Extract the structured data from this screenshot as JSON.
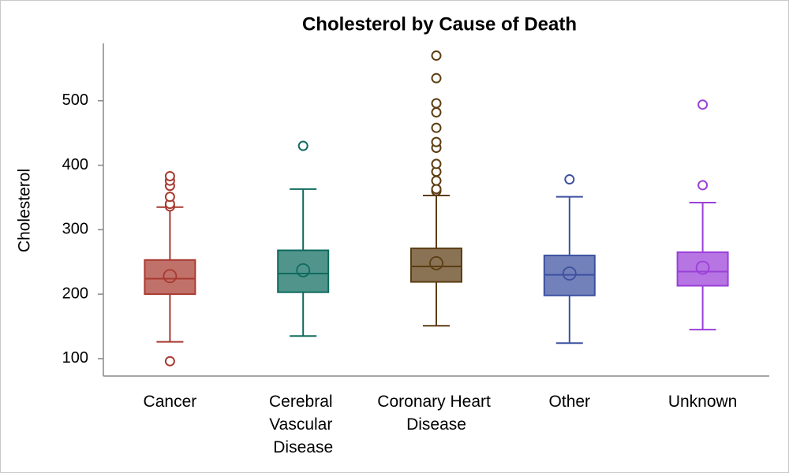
{
  "chart_data": {
    "type": "box",
    "title": "Cholesterol by Cause of Death",
    "y_label": "Cholesterol",
    "categories": [
      "Cancer",
      "Cerebral Vascular Disease",
      "Coronary Heart Disease",
      "Other",
      "Unknown"
    ],
    "boxes": [
      {
        "color": "#a83a30",
        "min": 126,
        "q1": 200,
        "median": 224,
        "q3": 253,
        "max": 335,
        "mean": 228,
        "outliers": [
          96,
          336,
          340,
          351,
          368,
          376,
          383
        ]
      },
      {
        "color": "#0e6b5e",
        "min": 135,
        "q1": 203,
        "median": 232,
        "q3": 268,
        "max": 363,
        "mean": 237,
        "outliers": [
          430
        ]
      },
      {
        "color": "#5c3d12",
        "min": 151,
        "q1": 219,
        "median": 243,
        "q3": 271,
        "max": 353,
        "mean": 248,
        "outliers": [
          360,
          363,
          376,
          390,
          402,
          427,
          436,
          458,
          482,
          496,
          535,
          570
        ]
      },
      {
        "color": "#3c50a0",
        "min": 124,
        "q1": 198,
        "median": 230,
        "q3": 260,
        "max": 351,
        "mean": 232,
        "outliers": [
          378
        ]
      },
      {
        "color": "#9a40d8",
        "min": 145,
        "q1": 213,
        "median": 235,
        "q3": 265,
        "max": 342,
        "mean": 241,
        "outliers": [
          369,
          494
        ]
      }
    ],
    "ylim": [
      73,
      589
    ],
    "yticks": [
      100,
      200,
      300,
      400,
      500
    ]
  }
}
